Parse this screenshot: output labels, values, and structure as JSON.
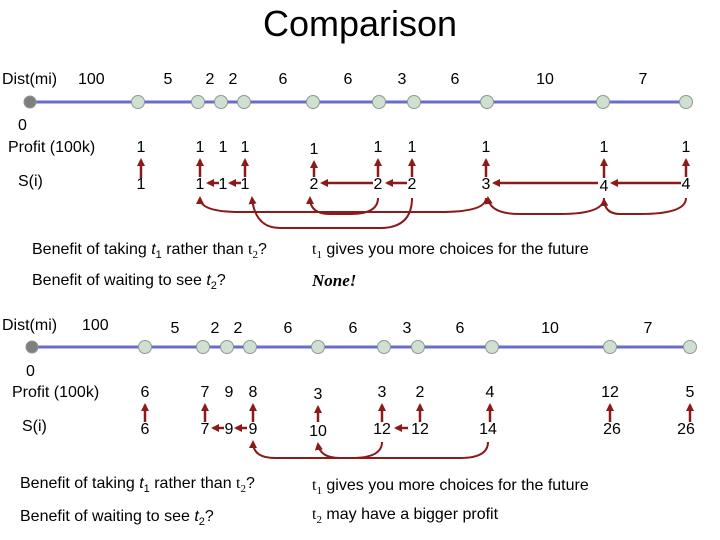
{
  "title": "Comparison",
  "colors": {
    "line": "#6b6bcf",
    "node_fill": "#cfe0d2",
    "node_stroke": "#8a9a8f",
    "start_node_fill": "#7f7f7f",
    "arrow": "#8b1a1a",
    "text": "#000000"
  },
  "panels": [
    {
      "dist_label": "Dist(mi)",
      "dist_start": "100",
      "start_extra": "0",
      "profit_label": "Profit (100k)",
      "s_label": "S(i)",
      "distances": [
        "5",
        "2",
        "2",
        "6",
        "6",
        "3",
        "6",
        "10",
        "7"
      ],
      "profits": [
        "1",
        "1",
        "1",
        "1",
        "1",
        "1",
        "1",
        "1",
        "1",
        "1"
      ],
      "s_values": [
        "1",
        "1",
        "1",
        "1",
        "2",
        "2",
        "2",
        "3",
        "4",
        "4"
      ],
      "q1": {
        "pre": "Benefit of taking ",
        "t1": "t",
        "t1sub": "1",
        "mid": " rather than ",
        "t2": "t",
        "t2sub": "2",
        "end": "?"
      },
      "a1": {
        "t": "t",
        "sub": "1",
        "rest": " gives you more choices for the future"
      },
      "q2": {
        "pre": "Benefit of waiting to see ",
        "t": "t",
        "sub": "2",
        "end": "?"
      },
      "a2": {
        "text": "None!"
      }
    },
    {
      "dist_label": "Dist(mi)",
      "dist_start": "100",
      "start_extra": "0",
      "profit_label": "Profit (100k)",
      "s_label": "S(i)",
      "distances": [
        "5",
        "2",
        "2",
        "6",
        "6",
        "3",
        "6",
        "10",
        "7"
      ],
      "profits": [
        "6",
        "7",
        "9",
        "8",
        "3",
        "3",
        "2",
        "4",
        "12",
        "5"
      ],
      "s_values": [
        "6",
        "7",
        "9",
        "9",
        "10",
        "12",
        "12",
        "14",
        "26",
        "26"
      ],
      "q1": {
        "pre": "Benefit of taking ",
        "t1": "t",
        "t1sub": "1",
        "mid": " rather than ",
        "t2": "t",
        "t2sub": "2",
        "end": "?"
      },
      "a1": {
        "t": "t",
        "sub": "1",
        "rest": " gives you more choices for the future"
      },
      "q2": {
        "pre": "Benefit of waiting to see ",
        "t": "t",
        "sub": "2",
        "end": "?"
      },
      "a2": {
        "t": "t",
        "sub": "2",
        "rest": " may have a bigger profit"
      }
    }
  ]
}
